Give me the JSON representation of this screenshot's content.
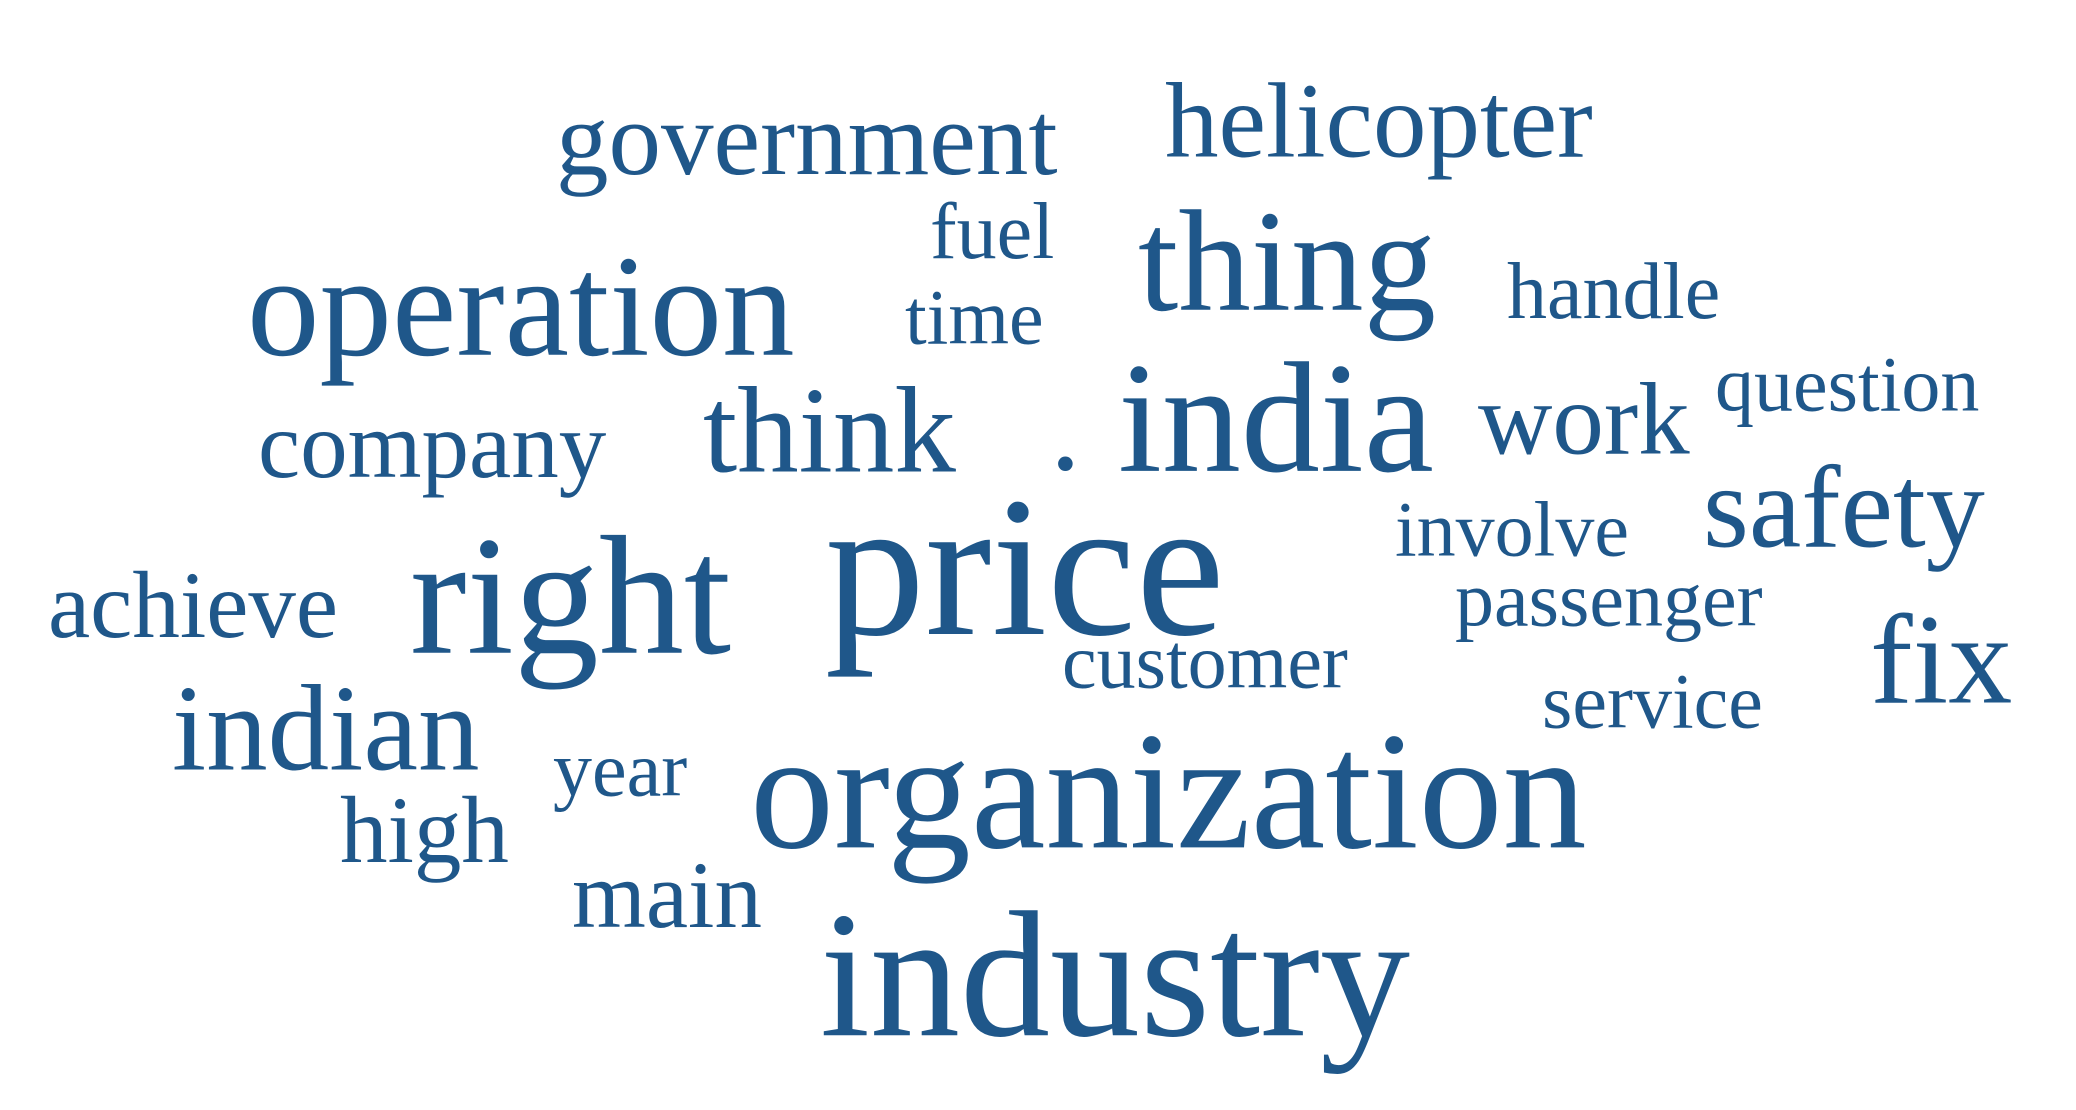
{
  "word_cloud": {
    "text_color": "#1f578a",
    "background_color": "#ffffff",
    "words": [
      {
        "key": "government",
        "text": "government"
      },
      {
        "key": "helicopter",
        "text": "helicopter"
      },
      {
        "key": "fuel",
        "text": "fuel"
      },
      {
        "key": "thing",
        "text": "thing"
      },
      {
        "key": "operation",
        "text": "operation"
      },
      {
        "key": "time",
        "text": "time"
      },
      {
        "key": "handle",
        "text": "handle"
      },
      {
        "key": "question",
        "text": "question"
      },
      {
        "key": "company",
        "text": "company"
      },
      {
        "key": "think",
        "text": "think"
      },
      {
        "key": "dot",
        "text": "."
      },
      {
        "key": "india",
        "text": "india"
      },
      {
        "key": "work",
        "text": "work"
      },
      {
        "key": "safety",
        "text": "safety"
      },
      {
        "key": "involve",
        "text": "involve"
      },
      {
        "key": "achieve",
        "text": "achieve"
      },
      {
        "key": "right",
        "text": "right"
      },
      {
        "key": "price",
        "text": "price"
      },
      {
        "key": "passenger",
        "text": "passenger"
      },
      {
        "key": "fix",
        "text": "fix"
      },
      {
        "key": "customer",
        "text": "customer"
      },
      {
        "key": "indian",
        "text": "indian"
      },
      {
        "key": "service",
        "text": "service"
      },
      {
        "key": "year",
        "text": "year"
      },
      {
        "key": "organization",
        "text": "organization"
      },
      {
        "key": "high",
        "text": "high"
      },
      {
        "key": "main",
        "text": "main"
      },
      {
        "key": "industry",
        "text": "industry"
      }
    ]
  }
}
